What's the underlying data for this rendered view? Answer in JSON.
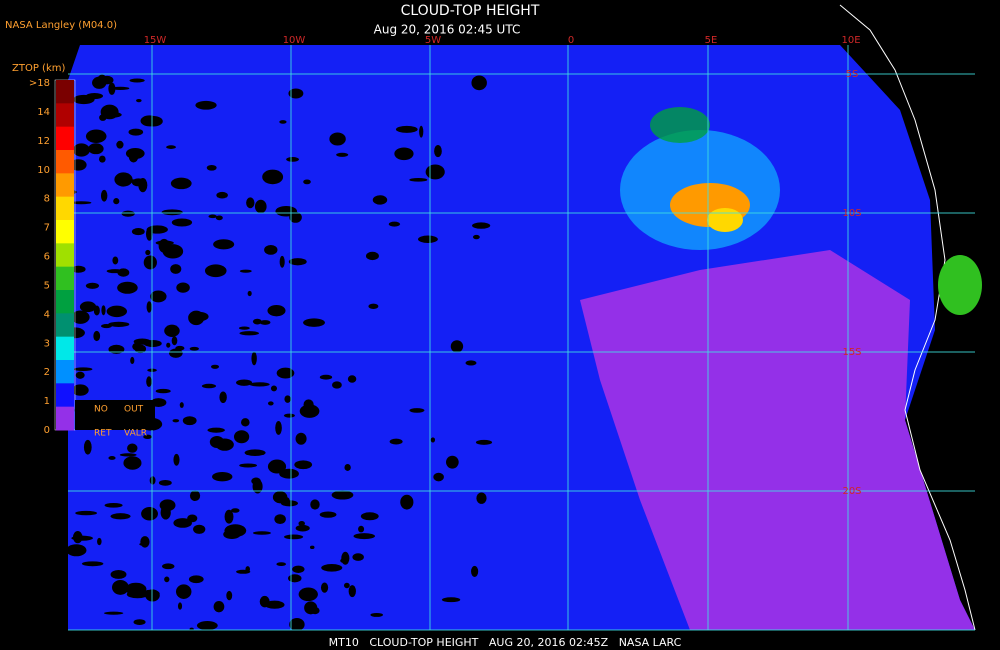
{
  "header": {
    "source": "NASA Langley (M04.0)",
    "title": "CLOUD-TOP HEIGHT",
    "subtitle": "Aug 20, 2016 02:45 UTC"
  },
  "legend": {
    "title": "ZTOP (km)",
    "labels": [
      ">18",
      "14",
      "12",
      "10",
      "8",
      "7",
      "6",
      "5",
      "4",
      "3",
      "2",
      "1",
      "0"
    ],
    "colors": [
      "#7a0000",
      "#b00000",
      "#ff0000",
      "#ff5a00",
      "#ff9a00",
      "#ffd800",
      "#ffff00",
      "#a0e000",
      "#30c020",
      "#00a040",
      "#009070",
      "#00e8e8",
      "#0090ff",
      "#1010ff",
      "#9430e8"
    ],
    "no_ret": [
      "NO",
      "RET"
    ],
    "out_valr": [
      "OUT",
      "VALR"
    ]
  },
  "map": {
    "lon_labels": [
      "15W",
      "10W",
      "5W",
      "0",
      "5E",
      "10E"
    ],
    "lat_labels": [
      "5S",
      "10S",
      "15S",
      "20S"
    ]
  },
  "footer": "MT10   CLOUD-TOP HEIGHT   AUG 20, 2016 02:45Z   NASA LARC"
}
